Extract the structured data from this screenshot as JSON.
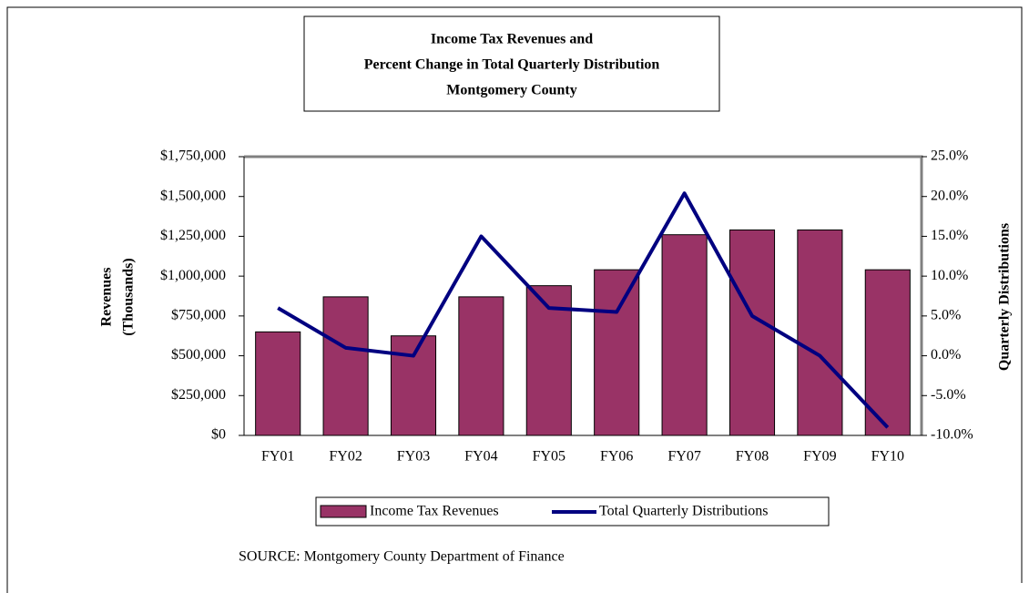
{
  "chart_data": {
    "type": "bar_line",
    "title": [
      "Income Tax Revenues and",
      "Percent Change in Total Quarterly Distribution",
      "Montgomery County"
    ],
    "y_label": [
      "Revenues",
      "(Thousands)"
    ],
    "y2_label": "Quarterly Distributions",
    "categories": [
      "FY01",
      "FY02",
      "FY03",
      "FY04",
      "FY05",
      "FY06",
      "FY07",
      "FY08",
      "FY09",
      "FY10"
    ],
    "series": [
      {
        "name": "Income Tax Revenues",
        "color": "#993366",
        "values": [
          650000,
          870000,
          625000,
          870000,
          940000,
          1040000,
          1260000,
          1290000,
          1290000,
          1040000
        ]
      },
      {
        "name": "Total Quarterly Distributions",
        "color": "#000080",
        "axis": "y2",
        "values": [
          6.0,
          1.0,
          0.0,
          15.0,
          6.0,
          5.5,
          20.4,
          5.0,
          0.0,
          -9.0
        ]
      }
    ],
    "ylim": [
      0,
      1750000
    ],
    "yticks": [
      {
        "value": 0,
        "label": "$0"
      },
      {
        "value": 250000,
        "label": "$250,000"
      },
      {
        "value": 500000,
        "label": "$500,000"
      },
      {
        "value": 750000,
        "label": "$750,000"
      },
      {
        "value": 1000000,
        "label": "$1,000,000"
      },
      {
        "value": 1250000,
        "label": "$1,250,000"
      },
      {
        "value": 1500000,
        "label": "$1,500,000"
      },
      {
        "value": 1750000,
        "label": "$1,750,000"
      }
    ],
    "y2lim": [
      -10,
      25
    ],
    "y2ticks": [
      {
        "value": -10,
        "label": "-10.0%"
      },
      {
        "value": -5,
        "label": "-5.0%"
      },
      {
        "value": 0,
        "label": "0.0%"
      },
      {
        "value": 5,
        "label": "5.0%"
      },
      {
        "value": 10,
        "label": "10.0%"
      },
      {
        "value": 15,
        "label": "15.0%"
      },
      {
        "value": 20,
        "label": "20.0%"
      },
      {
        "value": 25,
        "label": "25.0%"
      }
    ],
    "legend": "bottom",
    "source": "SOURCE:  Montgomery County Department of Finance"
  }
}
